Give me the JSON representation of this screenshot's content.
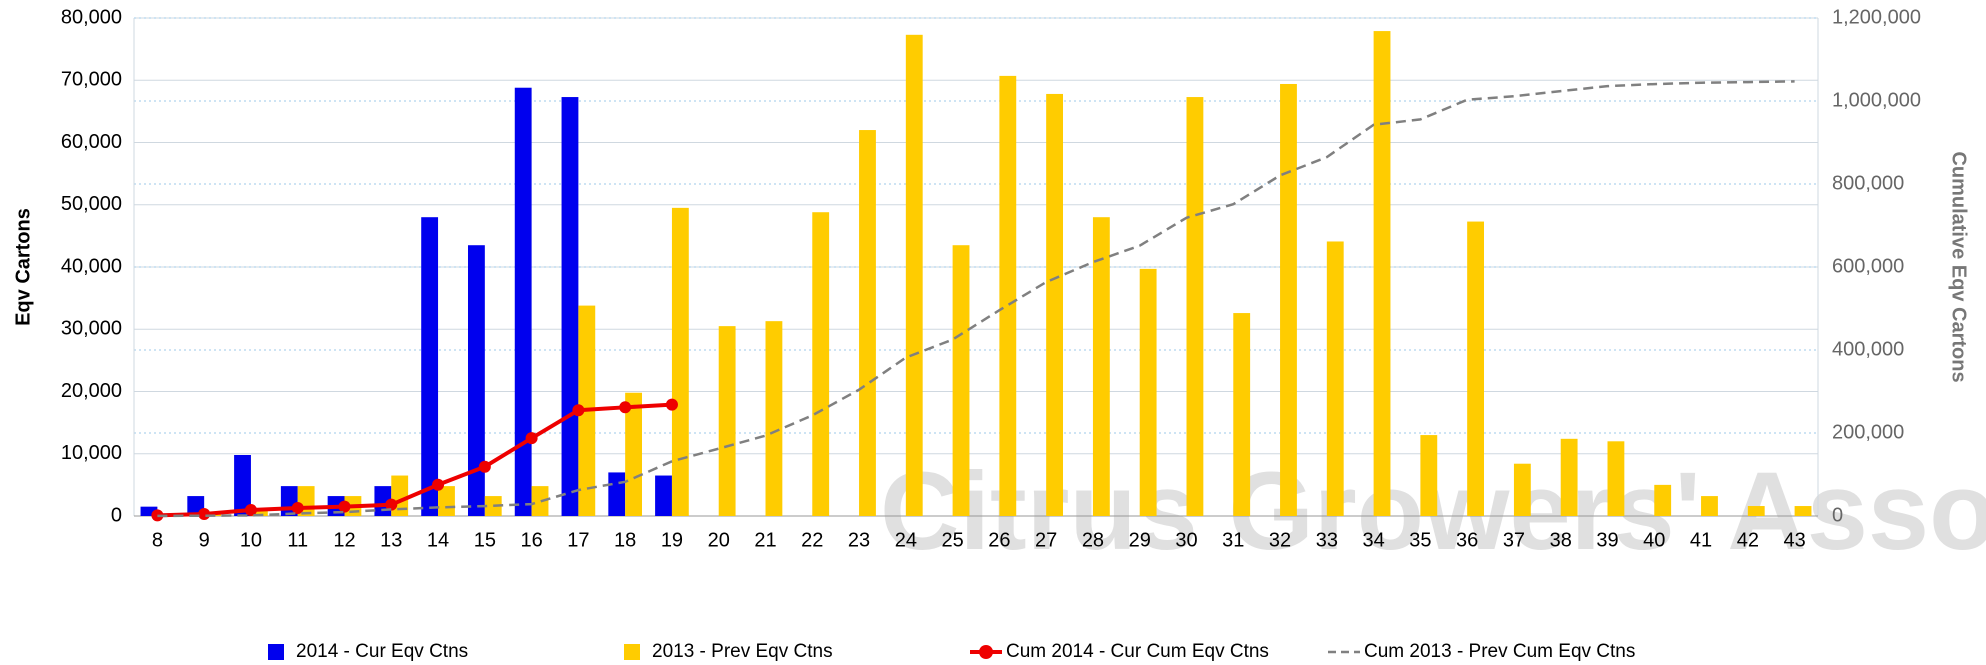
{
  "chart_data": {
    "type": "bar_line",
    "watermark": "Citrus Growers' Association",
    "y_label": "Eqv Cartons",
    "y2_label": "Cumulative Eqv Cartons",
    "categories": [
      "8",
      "9",
      "10",
      "11",
      "12",
      "13",
      "14",
      "15",
      "16",
      "17",
      "18",
      "19",
      "20",
      "21",
      "22",
      "23",
      "24",
      "25",
      "26",
      "27",
      "28",
      "29",
      "30",
      "31",
      "32",
      "33",
      "34",
      "35",
      "36",
      "37",
      "38",
      "39",
      "40",
      "41",
      "42",
      "43"
    ],
    "ylim": [
      0,
      80000
    ],
    "yticks": [
      0,
      {
        "value": 10000,
        "label": "10,000"
      },
      {
        "value": 20000,
        "label": "20,000"
      },
      {
        "value": 30000,
        "label": "30,000"
      },
      {
        "value": 40000,
        "label": "40,000"
      },
      {
        "value": 50000,
        "label": "50,000"
      },
      {
        "value": 60000,
        "label": "60,000"
      },
      {
        "value": 70000,
        "label": "70,000"
      },
      {
        "value": 80000,
        "label": "80,000"
      }
    ],
    "y2lim": [
      0,
      1200000
    ],
    "y2ticks": [
      0,
      {
        "value": 200000,
        "label": "200,000"
      },
      {
        "value": 400000,
        "label": "400,000"
      },
      {
        "value": 600000,
        "label": "600,000"
      },
      {
        "value": 800000,
        "label": "800,000"
      },
      {
        "value": 1000000,
        "label": "1,000,000"
      },
      {
        "value": 1200000,
        "label": "1,200,000"
      }
    ],
    "grid": true,
    "legend": "bottom",
    "series": [
      {
        "name": "2014 - Cur Eqv Ctns",
        "kind": "bar",
        "color": "#0000ee",
        "values": [
          1500,
          3200,
          9800,
          4800,
          3200,
          4800,
          48000,
          43500,
          68800,
          67300,
          7000,
          6500,
          null,
          null,
          null,
          null,
          null,
          null,
          null,
          null,
          null,
          null,
          null,
          null,
          null,
          null,
          null,
          null,
          null,
          null,
          null,
          null,
          null,
          null,
          null,
          null
        ]
      },
      {
        "name": "2013 - Prev Eqv Ctns",
        "kind": "bar",
        "color": "#ffcc00",
        "values": [
          300,
          300,
          800,
          4800,
          3200,
          6500,
          4800,
          3200,
          4800,
          33800,
          19800,
          49500,
          30500,
          31300,
          48800,
          62000,
          77300,
          43500,
          70700,
          67800,
          48000,
          39700,
          67300,
          32600,
          69400,
          44100,
          77900,
          13000,
          47300,
          8400,
          12400,
          12000,
          5000,
          3200,
          1600,
          1600
        ]
      },
      {
        "name": "Cum 2014 - Cur Cum Eqv Ctns",
        "kind": "line",
        "axis": "y2",
        "color": "#ee0000",
        "markers": true,
        "values": [
          1500,
          4700,
          14500,
          19300,
          22500,
          27300,
          75300,
          118800,
          187600,
          254900,
          261900,
          268400,
          null,
          null,
          null,
          null,
          null,
          null,
          null,
          null,
          null,
          null,
          null,
          null,
          null,
          null,
          null,
          null,
          null,
          null,
          null,
          null,
          null,
          null,
          null,
          null
        ]
      },
      {
        "name": "Cum 2013 - Prev Cum Eqv Ctns",
        "kind": "line",
        "axis": "y2",
        "color": "#808080",
        "dashed": true,
        "values": [
          300,
          600,
          1400,
          6200,
          9400,
          15900,
          20700,
          23900,
          28700,
          62500,
          82300,
          131800,
          162300,
          193600,
          242400,
          304400,
          381700,
          425200,
          495900,
          563700,
          611700,
          651400,
          718700,
          751300,
          820700,
          864800,
          942700,
          955700,
          1003000,
          1011400,
          1023800,
          1035800,
          1040800,
          1044000,
          1045600,
          1047200
        ]
      }
    ]
  }
}
